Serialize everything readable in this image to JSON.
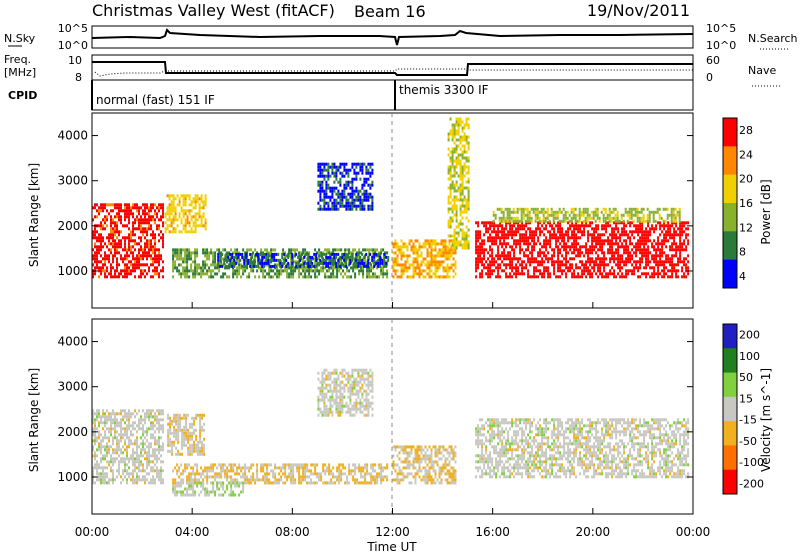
{
  "header": {
    "station": "Christmas Valley West (fitACF)",
    "beam": "Beam 16",
    "date": "19/Nov/2011"
  },
  "noise_panel": {
    "left_label": "N.Sky",
    "right_label": "N.Search",
    "left_ticks": [
      "10^5",
      "10^0"
    ],
    "right_ticks": [
      "10^5",
      "10^0"
    ]
  },
  "freq_panel": {
    "left_label_1": "Freq.",
    "left_label_2": "[MHz]",
    "right_label": "Nave",
    "left_ticks": [
      "10",
      "8"
    ],
    "right_ticks": [
      "60",
      "0"
    ]
  },
  "cpid": {
    "label": "CPID",
    "modes": [
      "normal (fast) 151 IF",
      "themis 3300 IF"
    ]
  },
  "x_axis": {
    "label": "Time UT",
    "ticks": [
      "00:00",
      "04:00",
      "08:00",
      "12:00",
      "16:00",
      "20:00",
      "00:00"
    ]
  },
  "colors": {
    "power_scale": [
      "#0000ff",
      "#2a7a3a",
      "#8ab030",
      "#f0d000",
      "#ff8800",
      "#ff0000"
    ],
    "velocity_scale": [
      "#2020c0",
      "#208020",
      "#80d040",
      "#c8c8c0",
      "#f0b020",
      "#ff7000",
      "#ff0000"
    ]
  },
  "chart_data": [
    {
      "type": "heatmap",
      "title": "",
      "xlabel": "Time UT",
      "ylabel": "Slant Range [km]",
      "yticks": [
        "4000",
        "3000",
        "2000",
        "1000"
      ],
      "ylim": [
        180,
        4500
      ],
      "xlim": [
        0,
        24
      ],
      "colorbar": {
        "label": "Power [dB]",
        "ticks": [
          "28",
          "24",
          "20",
          "16",
          "12",
          "8",
          "4"
        ],
        "range": [
          0,
          30
        ]
      },
      "regions": [
        {
          "t": [
            0.0,
            2.8
          ],
          "r": [
            900,
            2500
          ],
          "value": 27
        },
        {
          "t": [
            2.9,
            4.5
          ],
          "r": [
            1900,
            2700
          ],
          "value": 18
        },
        {
          "t": [
            3.2,
            11.8
          ],
          "r": [
            900,
            1500
          ],
          "value": 10
        },
        {
          "t": [
            5.0,
            11.8
          ],
          "r": [
            1100,
            1400
          ],
          "value": 5
        },
        {
          "t": [
            9.0,
            11.2
          ],
          "r": [
            2400,
            3400
          ],
          "value": 4
        },
        {
          "t": [
            12.0,
            14.5
          ],
          "r": [
            900,
            1700
          ],
          "value": 20
        },
        {
          "t": [
            14.2,
            15.0
          ],
          "r": [
            1500,
            4400
          ],
          "value": 16
        },
        {
          "t": [
            15.3,
            23.8
          ],
          "r": [
            900,
            2100
          ],
          "value": 28
        },
        {
          "t": [
            16.0,
            23.5
          ],
          "r": [
            2100,
            2400
          ],
          "value": 14
        }
      ]
    },
    {
      "type": "heatmap",
      "title": "",
      "xlabel": "Time UT",
      "ylabel": "Slant Range [km]",
      "yticks": [
        "4000",
        "3000",
        "2000",
        "1000"
      ],
      "ylim": [
        180,
        4500
      ],
      "xlim": [
        0,
        24
      ],
      "colorbar": {
        "label": "Velocity [m s^-1]",
        "ticks": [
          "200",
          "100",
          "50",
          "15",
          "-15",
          "-50",
          "-100",
          "-200"
        ],
        "range": [
          -250,
          250
        ]
      },
      "regions": [
        {
          "t": [
            0.0,
            2.8
          ],
          "r": [
            900,
            2500
          ],
          "value": 0
        },
        {
          "t": [
            3.0,
            4.5
          ],
          "r": [
            1500,
            2400
          ],
          "value": -20
        },
        {
          "t": [
            3.2,
            11.8
          ],
          "r": [
            900,
            1300
          ],
          "value": -40
        },
        {
          "t": [
            3.2,
            6.0
          ],
          "r": [
            600,
            900
          ],
          "value": 30
        },
        {
          "t": [
            9.0,
            11.2
          ],
          "r": [
            2400,
            3400
          ],
          "value": 0
        },
        {
          "t": [
            12.0,
            14.5
          ],
          "r": [
            900,
            1700
          ],
          "value": -30
        },
        {
          "t": [
            15.3,
            23.8
          ],
          "r": [
            1000,
            2300
          ],
          "value": 0
        }
      ]
    }
  ]
}
